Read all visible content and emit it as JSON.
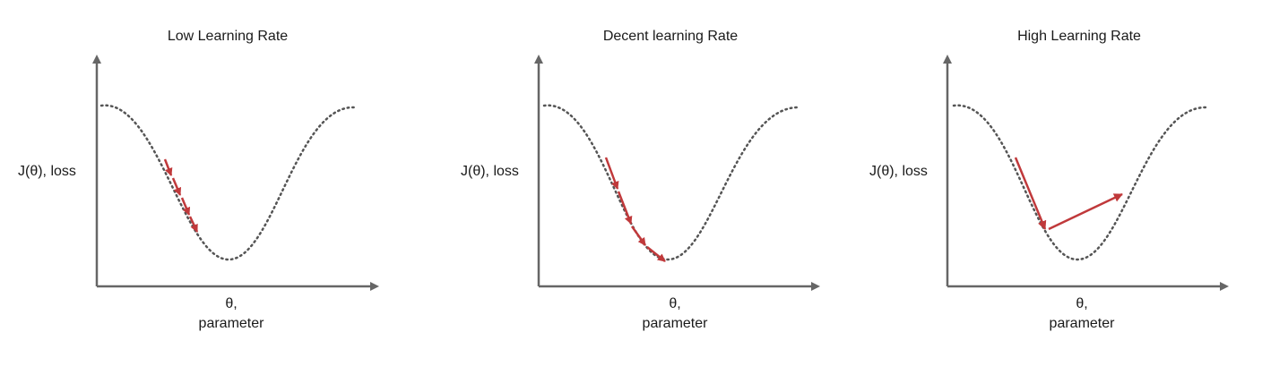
{
  "panels": [
    {
      "title": "Low Learning Rate",
      "ylabel": "J(θ), loss",
      "xlabel_line1": "θ,",
      "xlabel_line2": "parameter",
      "step_count": 4,
      "overshoots": false
    },
    {
      "title": "Decent learning Rate",
      "ylabel": "J(θ), loss",
      "xlabel_line1": "θ,",
      "xlabel_line2": "parameter",
      "step_count": 4,
      "overshoots": false
    },
    {
      "title": "High Learning Rate",
      "ylabel": "J(θ), loss",
      "xlabel_line1": "θ,",
      "xlabel_line2": "parameter",
      "step_count": 2,
      "overshoots": true
    }
  ],
  "colors": {
    "axis": "#666666",
    "curve": "#555555",
    "step_arrow": "#c0393b",
    "text": "#1a1a1a"
  }
}
